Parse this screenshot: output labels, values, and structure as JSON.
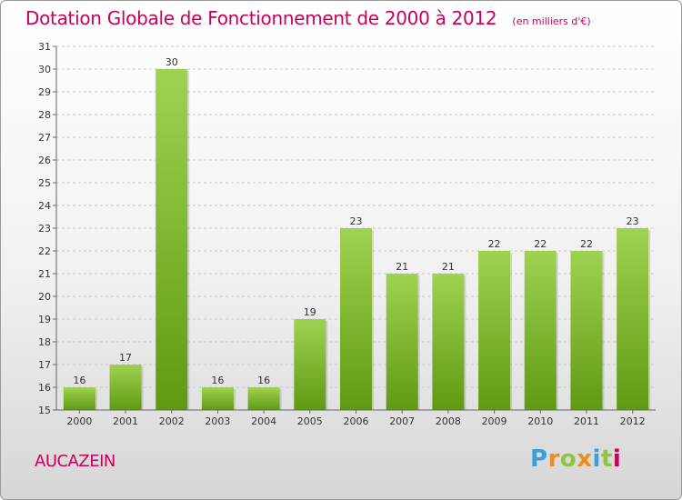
{
  "chart_data": {
    "type": "bar",
    "title": "Dotation Globale de Fonctionnement de 2000 à 2012",
    "subtitle": "(en milliers d'€)",
    "categories": [
      "2000",
      "2001",
      "2002",
      "2003",
      "2004",
      "2005",
      "2006",
      "2007",
      "2008",
      "2009",
      "2010",
      "2011",
      "2012"
    ],
    "values": [
      16,
      17,
      30,
      16,
      16,
      19,
      23,
      21,
      21,
      22,
      22,
      22,
      23
    ],
    "ylim": [
      15,
      31
    ],
    "yticks": [
      15,
      16,
      17,
      18,
      19,
      20,
      21,
      22,
      23,
      24,
      25,
      26,
      27,
      28,
      29,
      30,
      31
    ],
    "xlabel": "",
    "ylabel": "",
    "grid": true,
    "bar_color_top": "#9fd251",
    "bar_color_bottom": "#5f9a12"
  },
  "commune": "AUCAZEIN",
  "logo": {
    "letters": [
      "P",
      "r",
      "o",
      "x",
      "i",
      "t",
      "i"
    ],
    "colors": [
      "#3aa0dc",
      "#f08c1e",
      "#8cc63f",
      "#f08c1e",
      "#3aa0dc",
      "#8cc63f",
      "#c8005a"
    ]
  },
  "colors": {
    "title": "#c8005a",
    "grid": "#c8c8c8",
    "axis": "#666666"
  }
}
